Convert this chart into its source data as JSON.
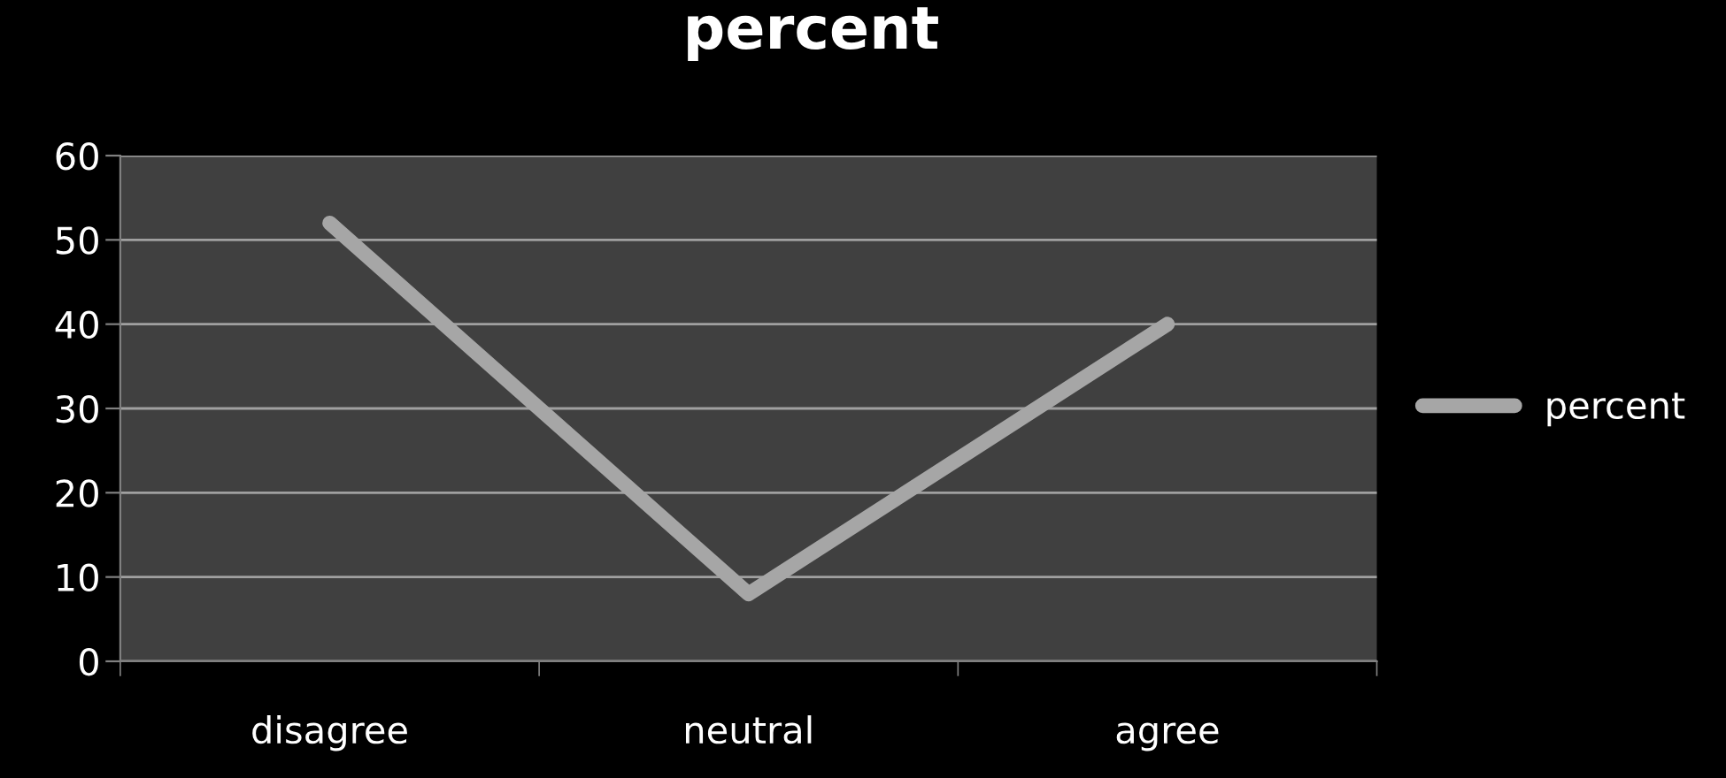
{
  "chart_data": {
    "type": "line",
    "title": "percent",
    "categories": [
      "disagree",
      "neutral",
      "agree"
    ],
    "series": [
      {
        "name": "percent",
        "color": "#a6a6a6",
        "values": [
          52,
          8,
          40
        ]
      }
    ],
    "ylim": [
      0,
      60
    ],
    "yticks": [
      0,
      10,
      20,
      30,
      40,
      50,
      60
    ],
    "grid": "y",
    "legend": "right",
    "marker": "none",
    "line_style": "solid"
  }
}
